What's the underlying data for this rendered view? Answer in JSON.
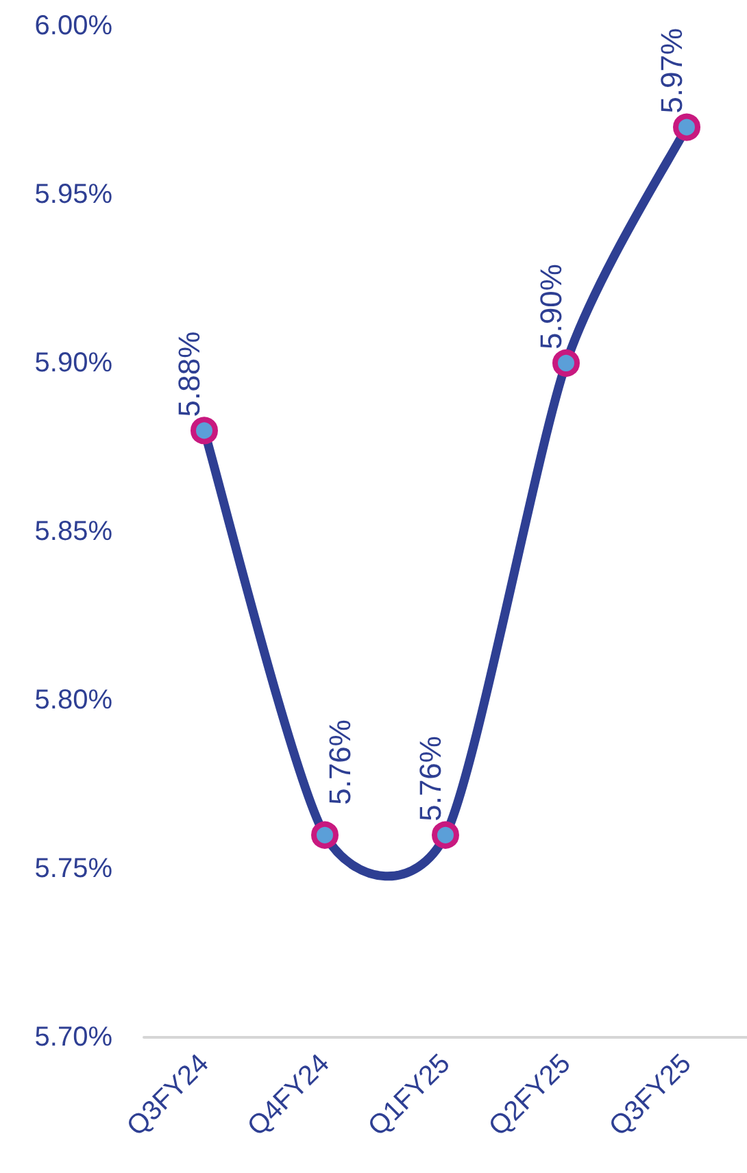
{
  "chart_data": {
    "type": "line",
    "categories": [
      "Q3FY24",
      "Q4FY24",
      "Q1FY25",
      "Q2FY25",
      "Q3FY25"
    ],
    "series": [
      {
        "color": "#2e3f93",
        "values": [
          5.88,
          5.76,
          5.76,
          5.9,
          5.97
        ],
        "value_labels": [
          "5.88%",
          "5.76%",
          "5.76%",
          "5.90%",
          "5.97%"
        ]
      }
    ],
    "ylim": [
      5.7,
      6.0
    ],
    "yticks": [
      {
        "value": 5.7,
        "label": "5.70%"
      },
      {
        "value": 5.75,
        "label": "5.75%"
      },
      {
        "value": 5.8,
        "label": "5.80%"
      },
      {
        "value": 5.85,
        "label": "5.85%"
      },
      {
        "value": 5.9,
        "label": "5.90%"
      },
      {
        "value": 5.95,
        "label": "5.95%"
      },
      {
        "value": 6.0,
        "label": "6.00%"
      }
    ],
    "marker": "circle",
    "line_style": "solid"
  }
}
